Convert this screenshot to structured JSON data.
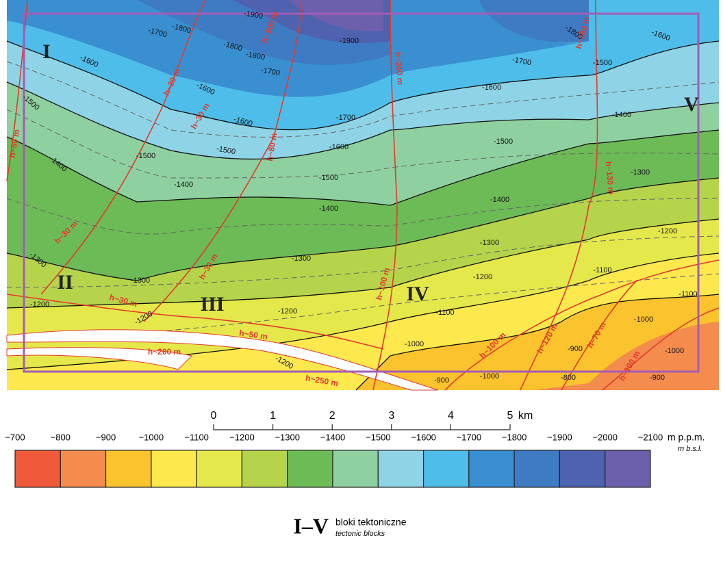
{
  "map": {
    "blocks": [
      "I",
      "II",
      "III",
      "IV",
      "V"
    ],
    "contour_labels": [
      "-1900",
      "-1900",
      "-1800",
      "-1800",
      "-1800",
      "-1800",
      "-1700",
      "-1700",
      "-1700",
      "-1700",
      "-1600",
      "-1600",
      "-1600",
      "-1600",
      "-1600",
      "-1600",
      "-1500",
      "-1500",
      "-1500",
      "-1500",
      "-1500",
      "-1500",
      "-1400",
      "-1400",
      "-1400",
      "-1400",
      "-1400",
      "-1300",
      "-1300",
      "-1300",
      "-1300",
      "-1300",
      "-1200",
      "-1200",
      "-1200",
      "-1200",
      "-1200",
      "-1100",
      "-1100",
      "-1100",
      "-1000",
      "-1000",
      "-1000",
      "-900",
      "-900",
      "-900",
      "-800",
      "-1000",
      "-1200"
    ],
    "fault_labels": [
      "h~50 m",
      "h~30 m",
      "h~30 m",
      "h~200 m",
      "h~30 m",
      "h~30 m",
      "h~30 m",
      "h~80 m",
      "h~200 m",
      "h~100 m",
      "h~130 m",
      "h~250 m",
      "h~50 m",
      "h~200 m",
      "h~250 m",
      "h~100 m",
      "h~120 m",
      "h~70 m",
      "h~100 m"
    ]
  },
  "scale": {
    "ticks": [
      "0",
      "1",
      "2",
      "3",
      "4",
      "5"
    ],
    "unit": "km"
  },
  "legend": {
    "ticks": [
      "−700",
      "−800",
      "−900",
      "−1000",
      "−1100",
      "−1200",
      "−1300",
      "−1400",
      "−1500",
      "−1600",
      "−1700",
      "−1800",
      "−1900",
      "−2000",
      "−2100"
    ],
    "colors": [
      "#ee5a3a",
      "#f48c4e",
      "#fbc32e",
      "#fde84e",
      "#e5e84a",
      "#b6d44b",
      "#6dbb57",
      "#8fd0a0",
      "#8fd4e6",
      "#4fbde9",
      "#3a8fd0",
      "#3f7bc3",
      "#4e62b0",
      "#6c5fab"
    ],
    "unit": "m p.p.m.",
    "unit_en": "m b.s.l.",
    "block_symbol": "I–V",
    "block_text": "bloki tektoniczne",
    "block_text_en": "tectonic blocks"
  }
}
